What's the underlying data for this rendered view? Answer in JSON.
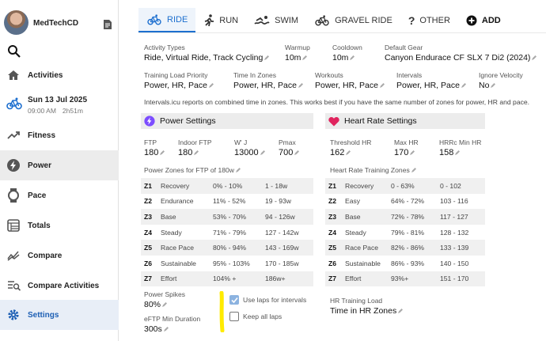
{
  "sidebar": {
    "username": "MedTechCD",
    "activity": {
      "date": "Sun 13 Jul 2025",
      "time": "09:00 AM",
      "duration": "2h51m"
    },
    "items": [
      {
        "label": "Activities",
        "icon": "home-icon"
      },
      {
        "label": "Fitness",
        "icon": "trend-icon"
      },
      {
        "label": "Power",
        "icon": "bolt-icon"
      },
      {
        "label": "Pace",
        "icon": "watch-icon"
      },
      {
        "label": "Totals",
        "icon": "totals-icon"
      },
      {
        "label": "Compare",
        "icon": "compare-icon"
      },
      {
        "label": "Compare Activities",
        "icon": "compare-list-icon"
      },
      {
        "label": "Settings",
        "icon": "gear-icon"
      }
    ]
  },
  "tabs": [
    {
      "label": "RIDE",
      "icon": "bike-icon"
    },
    {
      "label": "RUN",
      "icon": "run-icon"
    },
    {
      "label": "SWIM",
      "icon": "swim-icon"
    },
    {
      "label": "GRAVEL RIDE",
      "icon": "bike-icon"
    },
    {
      "label": "OTHER",
      "icon": "question-icon"
    },
    {
      "label": "ADD",
      "icon": "plus-icon"
    }
  ],
  "settings": {
    "activity_types": {
      "label": "Activity Types",
      "value": "Ride, Virtual Ride, Track Cycling"
    },
    "warmup": {
      "label": "Warmup",
      "value": "10m"
    },
    "cooldown": {
      "label": "Cooldown",
      "value": "10m"
    },
    "default_gear": {
      "label": "Default Gear",
      "value": "Canyon Endurace CF SLX 7 Di2 (2024)"
    },
    "training_load_priority": {
      "label": "Training Load Priority",
      "value": "Power, HR, Pace"
    },
    "time_in_zones": {
      "label": "Time In Zones",
      "value": "Power, HR, Pace"
    },
    "workouts": {
      "label": "Workouts",
      "value": "Power, HR, Pace"
    },
    "intervals": {
      "label": "Intervals",
      "value": "Power, HR, Pace"
    },
    "ignore_velocity": {
      "label": "Ignore Velocity",
      "value": "No"
    },
    "note": "Intervals.icu reports on combined time in zones. This works best if you have the same number of zones for power, HR and pace."
  },
  "power": {
    "title": "Power Settings",
    "ftp": {
      "label": "FTP",
      "value": "180"
    },
    "indoor_ftp": {
      "label": "Indoor FTP",
      "value": "180"
    },
    "wprime": {
      "label": "W' J",
      "value": "13000"
    },
    "pmax": {
      "label": "Pmax",
      "value": "700"
    },
    "zones_title": "Power Zones for FTP of 180w",
    "zones": [
      {
        "id": "Z1",
        "name": "Recovery",
        "pct": "0% - 10%",
        "val": "1 - 18w"
      },
      {
        "id": "Z2",
        "name": "Endurance",
        "pct": "11% - 52%",
        "val": "19 - 93w"
      },
      {
        "id": "Z3",
        "name": "Base",
        "pct": "53% - 70%",
        "val": "94 - 126w"
      },
      {
        "id": "Z4",
        "name": "Steady",
        "pct": "71% - 79%",
        "val": "127 - 142w"
      },
      {
        "id": "Z5",
        "name": "Race Pace",
        "pct": "80% - 94%",
        "val": "143 - 169w"
      },
      {
        "id": "Z6",
        "name": "Sustainable",
        "pct": "95% - 103%",
        "val": "170 - 185w"
      },
      {
        "id": "Z7",
        "name": "Effort",
        "pct": "104% +",
        "val": "186w+"
      }
    ],
    "spikes": {
      "label": "Power Spikes",
      "value": "80%"
    },
    "eftp_min": {
      "label": "eFTP Min Duration",
      "value": "300s"
    },
    "use_laps": {
      "label": "Use laps for intervals",
      "checked": true
    },
    "keep_all_laps": {
      "label": "Keep all laps",
      "checked": false
    }
  },
  "hr": {
    "title": "Heart Rate Settings",
    "threshold": {
      "label": "Threshold HR",
      "value": "162"
    },
    "max": {
      "label": "Max HR",
      "value": "170"
    },
    "hrrc_min": {
      "label": "HRRc Min HR",
      "value": "158"
    },
    "zones_title": "Heart Rate Training Zones",
    "zones": [
      {
        "id": "Z1",
        "name": "Recovery",
        "pct": "0 - 63%",
        "val": "0 - 102"
      },
      {
        "id": "Z2",
        "name": "Easy",
        "pct": "64% - 72%",
        "val": "103 - 116"
      },
      {
        "id": "Z3",
        "name": "Base",
        "pct": "72% - 78%",
        "val": "117 - 127"
      },
      {
        "id": "Z4",
        "name": "Steady",
        "pct": "79% - 81%",
        "val": "128 - 132"
      },
      {
        "id": "Z5",
        "name": "Race Pace",
        "pct": "82% - 86%",
        "val": "133 - 139"
      },
      {
        "id": "Z6",
        "name": "Sustainable",
        "pct": "86% - 93%",
        "val": "140 - 150"
      },
      {
        "id": "Z7",
        "name": "Effort",
        "pct": "93%+",
        "val": "151 - 170"
      }
    ],
    "load": {
      "label": "HR Training Load",
      "value": "Time in HR Zones"
    }
  },
  "colors": {
    "accent": "#1d6fcf",
    "heart": "#e0245e",
    "bolt": "#7c4dff",
    "highlight": "#ffeb00"
  }
}
